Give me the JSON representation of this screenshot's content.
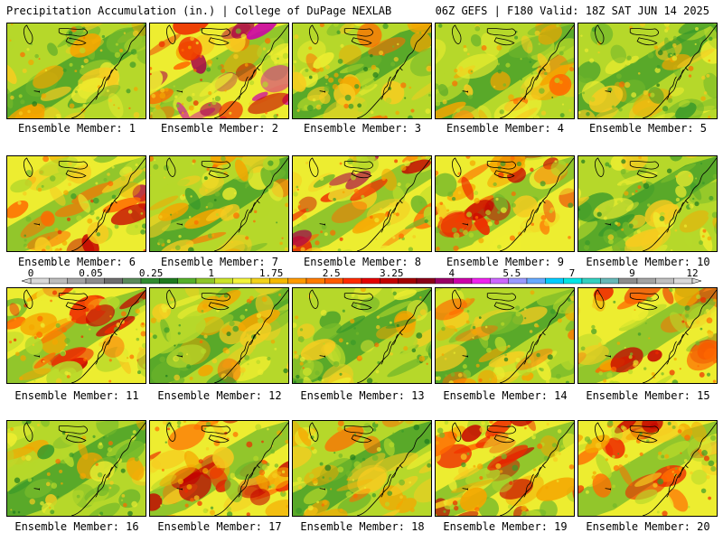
{
  "header": {
    "left": "Precipitation Accumulation (in.) | College of DuPage NEXLAB",
    "right": "06Z GEFS | F180 Valid: 18Z SAT JUN 14 2025"
  },
  "legend": {
    "labels": [
      "0",
      "0.05",
      "0.25",
      "1",
      "1.75",
      "2.5",
      "3.25",
      "4",
      "5.5",
      "7",
      "9",
      "12"
    ],
    "colors": [
      "#d9d9d9",
      "#bcbcbc",
      "#a3a3a3",
      "#8c8c8c",
      "#6d6d6d",
      "#5a8a5a",
      "#2f8a2f",
      "#1e7a1e",
      "#55b02a",
      "#8ec62a",
      "#cce32a",
      "#f3f33a",
      "#f2d21a",
      "#f5b800",
      "#ff9a00",
      "#ff7b00",
      "#ff5a00",
      "#ff2a00",
      "#e40000",
      "#c40000",
      "#a30000",
      "#8a0018",
      "#990066",
      "#cc00aa",
      "#ee22ee",
      "#cc66ff",
      "#9999ff",
      "#66aaff",
      "#00ccff",
      "#00e5e5",
      "#33d0c0",
      "#66b8b8",
      "#8c8c8c",
      "#a3a3a3",
      "#bfbfbf",
      "#d9d9d9"
    ]
  },
  "panels": [
    {
      "label": "Ensemble Member: 1",
      "wetness": 0.3
    },
    {
      "label": "Ensemble Member: 2",
      "wetness": 0.8
    },
    {
      "label": "Ensemble Member: 3",
      "wetness": 0.4
    },
    {
      "label": "Ensemble Member: 4",
      "wetness": 0.35
    },
    {
      "label": "Ensemble Member: 5",
      "wetness": 0.25
    },
    {
      "label": "Ensemble Member: 6",
      "wetness": 0.6
    },
    {
      "label": "Ensemble Member: 7",
      "wetness": 0.35
    },
    {
      "label": "Ensemble Member: 8",
      "wetness": 0.7
    },
    {
      "label": "Ensemble Member: 9",
      "wetness": 0.55
    },
    {
      "label": "Ensemble Member: 10",
      "wetness": 0.2
    },
    {
      "label": "Ensemble Member: 11",
      "wetness": 0.5
    },
    {
      "label": "Ensemble Member: 12",
      "wetness": 0.4
    },
    {
      "label": "Ensemble Member: 13",
      "wetness": 0.3
    },
    {
      "label": "Ensemble Member: 14",
      "wetness": 0.45
    },
    {
      "label": "Ensemble Member: 15",
      "wetness": 0.5
    },
    {
      "label": "Ensemble Member: 16",
      "wetness": 0.3
    },
    {
      "label": "Ensemble Member: 17",
      "wetness": 0.55
    },
    {
      "label": "Ensemble Member: 18",
      "wetness": 0.45
    },
    {
      "label": "Ensemble Member: 19",
      "wetness": 0.5
    },
    {
      "label": "Ensemble Member: 20",
      "wetness": 0.55
    }
  ]
}
